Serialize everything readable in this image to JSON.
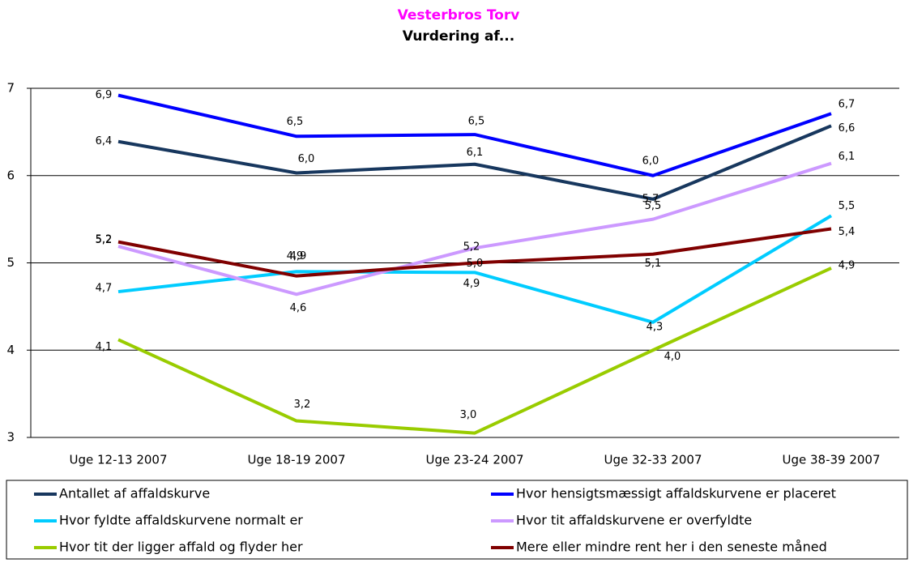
{
  "chart_data": {
    "type": "line",
    "title": "Vesterbros Torv",
    "subtitle": "Vurdering af...",
    "categories": [
      "Uge 12-13 2007",
      "Uge 18-19 2007",
      "Uge 23-24 2007",
      "Uge 32-33 2007",
      "Uge 38-39 2007"
    ],
    "ylim": [
      3,
      7
    ],
    "yticks": [
      3,
      4,
      5,
      6,
      7
    ],
    "grid": true,
    "legend": "bottom",
    "series": [
      {
        "name": "Antallet af affaldskurve",
        "color": "#17375e",
        "values": [
          6.39,
          6.03,
          6.13,
          5.73,
          6.57
        ],
        "value_labels": [
          "6,4",
          "6,0",
          "6,1",
          "5,7",
          "6,6"
        ]
      },
      {
        "name": "Hvor hensigtsmæssigt affaldskurvene er placeret",
        "color": "#0000ff",
        "values": [
          6.92,
          6.45,
          6.47,
          6.0,
          6.71
        ],
        "value_labels": [
          "6,9",
          "6,5",
          "6,5",
          "6,0",
          "6,7"
        ]
      },
      {
        "name": "Hvor fyldte affaldskurvene normalt er",
        "color": "#00ccff",
        "values": [
          4.67,
          4.9,
          4.89,
          4.32,
          5.54
        ],
        "value_labels": [
          "4,7",
          "4,9",
          "4,9",
          "4,3",
          "5,5"
        ]
      },
      {
        "name": "Hvor tit affaldskurvene er overfyldte",
        "color": "#cc99ff",
        "values": [
          5.19,
          4.64,
          5.17,
          5.5,
          6.14
        ],
        "value_labels": [
          "5,2",
          "4,6",
          "5,2",
          "5,5",
          "6,1"
        ]
      },
      {
        "name": "Hvor tit der ligger affald og flyder her",
        "color": "#99cc00",
        "values": [
          4.12,
          3.19,
          3.05,
          4.0,
          4.94
        ],
        "value_labels": [
          "4,1",
          "3,2",
          "3,0",
          "4,0",
          "4,9"
        ]
      },
      {
        "name": "Mere eller mindre rent her i den seneste måned",
        "color": "#800000",
        "values": [
          5.24,
          4.85,
          5.0,
          5.1,
          5.39
        ],
        "value_labels": [
          "5,2",
          "4,9",
          "5,0",
          "5,1",
          "5,4"
        ]
      }
    ]
  }
}
